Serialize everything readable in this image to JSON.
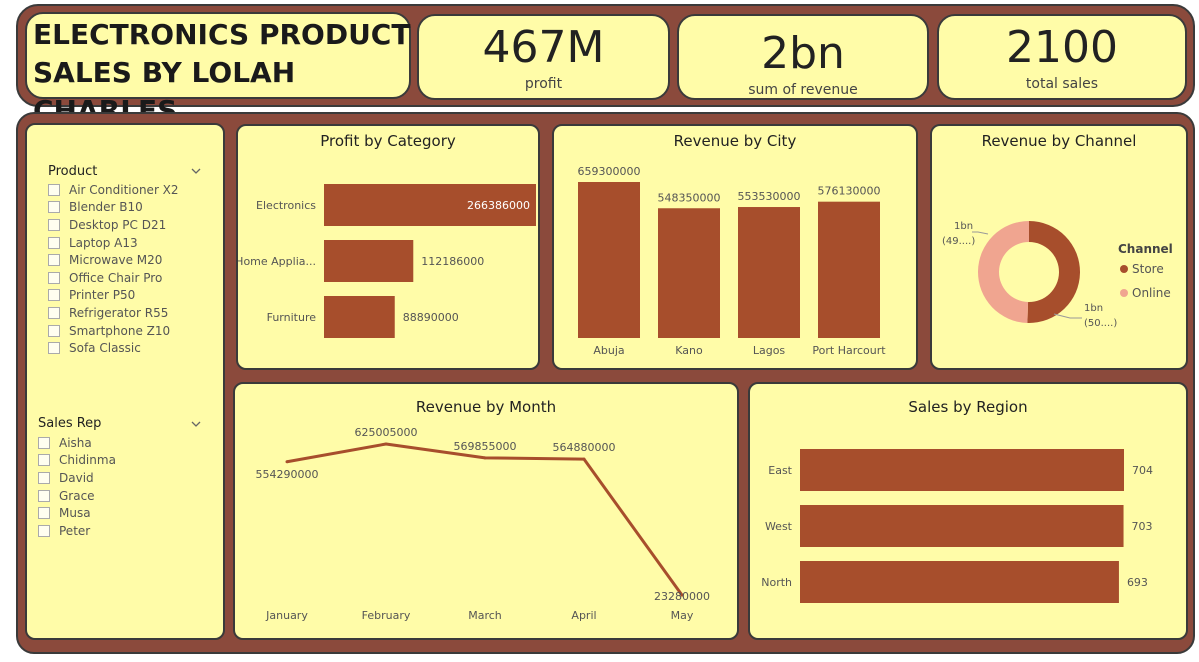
{
  "header": {
    "title": "ELECTRONICS PRODUCT SALES BY LOLAH CHARLES"
  },
  "kpis": [
    {
      "value": "467M",
      "label": "profit"
    },
    {
      "value": "2bn",
      "label": "sum of revenue"
    },
    {
      "value": "2100",
      "label": "total sales"
    }
  ],
  "slicers": {
    "product": {
      "title": "Product",
      "items": [
        "Air Conditioner X2",
        "Blender B10",
        "Desktop PC D21",
        "Laptop A13",
        "Microwave M20",
        "Office Chair Pro",
        "Printer P50",
        "Refrigerator R55",
        "Smartphone Z10",
        "Sofa Classic"
      ]
    },
    "sales_rep": {
      "title": "Sales Rep",
      "items": [
        "Aisha",
        "Chidinma",
        "David",
        "Grace",
        "Musa",
        "Peter"
      ]
    }
  },
  "colors": {
    "bar": "#a74e2c",
    "store": "#a74e2c",
    "online": "#f0a590",
    "card_bg": "#fffca8",
    "band_bg": "#8b4a3c"
  },
  "chart_data": [
    {
      "id": "profit_by_category",
      "type": "bar",
      "orientation": "horizontal",
      "title": "Profit by Category",
      "categories": [
        "Electronics",
        "Home Applia...",
        "Furniture"
      ],
      "values": [
        266386000,
        112186000,
        88890000
      ],
      "value_labels": [
        "266386000",
        "112186000",
        "88890000"
      ]
    },
    {
      "id": "revenue_by_city",
      "type": "bar",
      "title": "Revenue by City",
      "categories": [
        "Abuja",
        "Kano",
        "Lagos",
        "Port Harcourt"
      ],
      "values": [
        659300000,
        548350000,
        553530000,
        576130000
      ],
      "value_labels": [
        "659300000",
        "548350000",
        "553530000",
        "576130000"
      ]
    },
    {
      "id": "revenue_by_channel",
      "type": "pie",
      "donut": true,
      "title": "Revenue by Channel",
      "legend_title": "Channel",
      "legend_position": "right",
      "slices": [
        {
          "name": "Store",
          "value": 50.5,
          "label": "1bn",
          "sublabel": "(50....)"
        },
        {
          "name": "Online",
          "value": 49.5,
          "label": "1bn",
          "sublabel": "(49....)"
        }
      ]
    },
    {
      "id": "revenue_by_month",
      "type": "line",
      "title": "Revenue by Month",
      "categories": [
        "January",
        "February",
        "March",
        "April",
        "May"
      ],
      "values": [
        554290000,
        625005000,
        569855000,
        564880000,
        23280000
      ],
      "value_labels": [
        "554290000",
        "625005000",
        "569855000",
        "564880000",
        "23280000"
      ]
    },
    {
      "id": "sales_by_region",
      "type": "bar",
      "orientation": "horizontal",
      "title": "Sales by Region",
      "categories": [
        "East",
        "West",
        "North"
      ],
      "values": [
        704,
        703,
        693
      ],
      "value_labels": [
        "704",
        "703",
        "693"
      ]
    }
  ]
}
